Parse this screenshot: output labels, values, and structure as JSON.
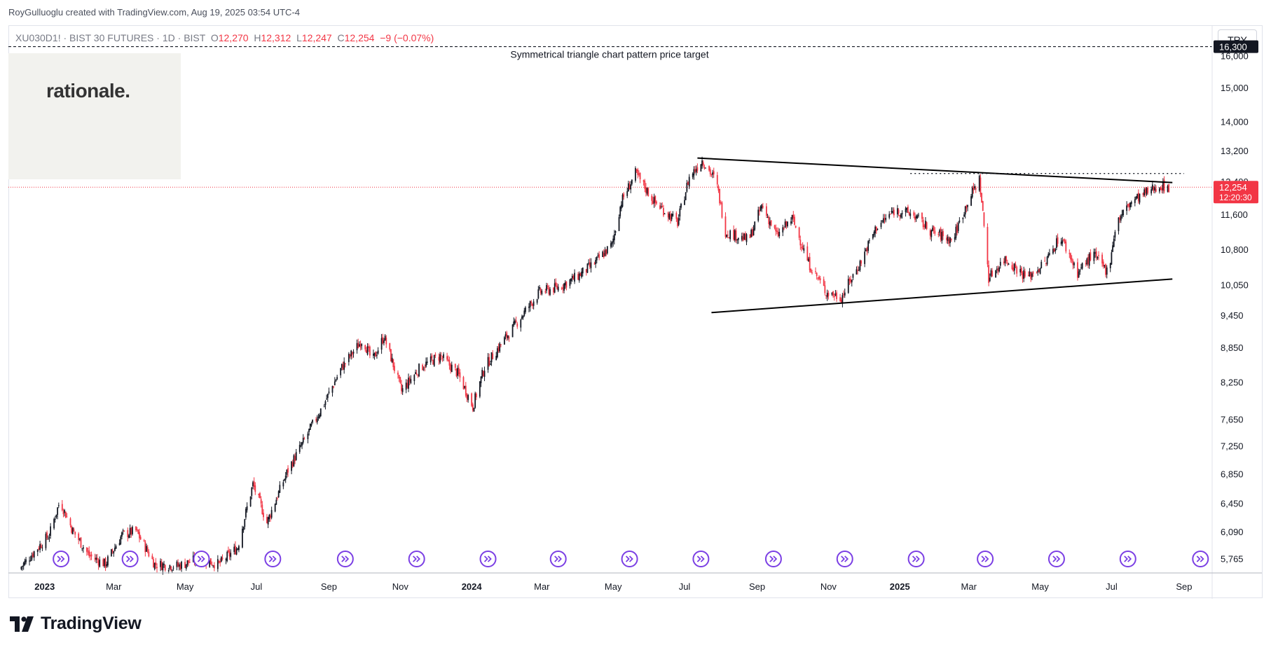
{
  "header": {
    "credit": "RoyGulluoglu created with TradingView.com, Aug 19, 2025 03:54 UTC-4"
  },
  "legend": {
    "symbol": "XU030D1!",
    "name": "BIST 30 FUTURES",
    "interval": "1D",
    "exchange": "BIST",
    "open_label": "O",
    "open": "12,270",
    "high_label": "H",
    "high": "12,312",
    "low_label": "L",
    "low": "12,247",
    "close_label": "C",
    "close": "12,254",
    "change": "−9 (−0.07%)"
  },
  "logo_text": "rationale.",
  "currency_button": "TRY",
  "brand": "TradingView",
  "colors": {
    "up": "#131722",
    "down": "#f23645",
    "last_price_bg": "#f23645",
    "target_bg": "#131722",
    "event_icon": "#7b3fe4",
    "trendline": "#000000"
  },
  "chart_data": {
    "type": "candlestick",
    "scale": "log",
    "ylim": [
      5600,
      17000
    ],
    "y_ticks": [
      "16,000",
      "15,000",
      "14,000",
      "13,200",
      "12,400",
      "11,600",
      "10,800",
      "10,050",
      "9,450",
      "8,850",
      "8,250",
      "7,650",
      "7,250",
      "6,850",
      "6,450",
      "6,090",
      "5,765"
    ],
    "x_ticks": [
      {
        "label": "2023",
        "date": "2023-01-01",
        "bold": true
      },
      {
        "label": "Mar",
        "date": "2023-03-01"
      },
      {
        "label": "May",
        "date": "2023-05-01"
      },
      {
        "label": "Jul",
        "date": "2023-07-01"
      },
      {
        "label": "Sep",
        "date": "2023-09-01"
      },
      {
        "label": "Nov",
        "date": "2023-11-01"
      },
      {
        "label": "2024",
        "date": "2024-01-01",
        "bold": true
      },
      {
        "label": "Mar",
        "date": "2024-03-01"
      },
      {
        "label": "May",
        "date": "2024-05-01"
      },
      {
        "label": "Jul",
        "date": "2024-07-01"
      },
      {
        "label": "Sep",
        "date": "2024-09-01"
      },
      {
        "label": "Nov",
        "date": "2024-11-01"
      },
      {
        "label": "2025",
        "date": "2025-01-01",
        "bold": true
      },
      {
        "label": "Mar",
        "date": "2025-03-01"
      },
      {
        "label": "May",
        "date": "2025-05-01"
      },
      {
        "label": "Jul",
        "date": "2025-07-01"
      },
      {
        "label": "Sep",
        "date": "2025-09-01"
      }
    ],
    "x_range": [
      "2022-12-01",
      "2025-09-25"
    ],
    "price_path": [
      [
        "2022-12-10",
        5640
      ],
      [
        "2023-01-05",
        6050
      ],
      [
        "2023-01-14",
        6480
      ],
      [
        "2023-01-25",
        6100
      ],
      [
        "2023-02-08",
        5800
      ],
      [
        "2023-02-22",
        5700
      ],
      [
        "2023-03-08",
        6050
      ],
      [
        "2023-03-20",
        6100
      ],
      [
        "2023-04-05",
        5700
      ],
      [
        "2023-04-25",
        5680
      ],
      [
        "2023-05-12",
        5760
      ],
      [
        "2023-05-30",
        5700
      ],
      [
        "2023-06-15",
        5900
      ],
      [
        "2023-06-28",
        6700
      ],
      [
        "2023-07-10",
        6200
      ],
      [
        "2023-07-28",
        6900
      ],
      [
        "2023-08-10",
        7300
      ],
      [
        "2023-08-28",
        7900
      ],
      [
        "2023-09-12",
        8500
      ],
      [
        "2023-09-30",
        9000
      ],
      [
        "2023-10-08",
        8600
      ],
      [
        "2023-10-18",
        9050
      ],
      [
        "2023-11-02",
        8100
      ],
      [
        "2023-11-18",
        8500
      ],
      [
        "2023-12-05",
        8700
      ],
      [
        "2023-12-20",
        8400
      ],
      [
        "2024-01-02",
        7850
      ],
      [
        "2024-01-12",
        8500
      ],
      [
        "2024-02-05",
        9200
      ],
      [
        "2024-02-28",
        9900
      ],
      [
        "2024-03-15",
        10000
      ],
      [
        "2024-03-30",
        10200
      ],
      [
        "2024-04-15",
        10500
      ],
      [
        "2024-04-30",
        10900
      ],
      [
        "2024-05-08",
        11900
      ],
      [
        "2024-05-20",
        12600
      ],
      [
        "2024-06-05",
        11900
      ],
      [
        "2024-06-25",
        11400
      ],
      [
        "2024-07-05",
        12500
      ],
      [
        "2024-07-16",
        12950
      ],
      [
        "2024-07-28",
        12400
      ],
      [
        "2024-08-05",
        11200
      ],
      [
        "2024-08-25",
        11000
      ],
      [
        "2024-09-05",
        11800
      ],
      [
        "2024-09-18",
        11100
      ],
      [
        "2024-10-01",
        11500
      ],
      [
        "2024-10-15",
        10500
      ],
      [
        "2024-10-30",
        9900
      ],
      [
        "2024-11-12",
        9800
      ],
      [
        "2024-11-28",
        10500
      ],
      [
        "2024-12-12",
        11300
      ],
      [
        "2024-12-28",
        11700
      ],
      [
        "2025-01-12",
        11600
      ],
      [
        "2025-01-28",
        11200
      ],
      [
        "2025-02-15",
        11000
      ],
      [
        "2025-02-28",
        11900
      ],
      [
        "2025-03-10",
        12450
      ],
      [
        "2025-03-18",
        10200
      ],
      [
        "2025-04-01",
        10600
      ],
      [
        "2025-04-20",
        10200
      ],
      [
        "2025-05-05",
        10500
      ],
      [
        "2025-05-18",
        11100
      ],
      [
        "2025-06-02",
        10300
      ],
      [
        "2025-06-15",
        10700
      ],
      [
        "2025-06-28",
        10300
      ],
      [
        "2025-07-05",
        11400
      ],
      [
        "2025-07-18",
        11900
      ],
      [
        "2025-07-30",
        12100
      ],
      [
        "2025-08-10",
        12300
      ],
      [
        "2025-08-19",
        12254
      ]
    ],
    "annotations": [
      {
        "kind": "horizontal-dashed",
        "price": 16300,
        "from": "2022-12-01",
        "to": "2025-09-25",
        "label": "Symmetrical triangle chart pattern price target"
      },
      {
        "kind": "trendline",
        "from": [
          "2024-07-12",
          13000
        ],
        "to": [
          "2025-08-22",
          12370
        ]
      },
      {
        "kind": "trendline",
        "from": [
          "2024-07-24",
          9500
        ],
        "to": [
          "2025-08-22",
          10170
        ]
      },
      {
        "kind": "horizontal-dotted",
        "price": 12600,
        "from": "2025-01-10",
        "to": "2025-09-01"
      },
      {
        "kind": "horizontal-dotted-red",
        "price": 12254,
        "from": "2022-12-01",
        "to": "2025-09-25"
      }
    ],
    "price_badges": [
      {
        "price": 16300,
        "text": "16,300",
        "style": "target"
      },
      {
        "price": 12254,
        "text": "12,254",
        "sub": "12:20:30",
        "style": "last"
      }
    ],
    "event_markers": [
      "2023-01-15",
      "2023-03-15",
      "2023-05-15",
      "2023-07-15",
      "2023-09-15",
      "2023-11-15",
      "2024-01-15",
      "2024-03-15",
      "2024-05-15",
      "2024-07-15",
      "2024-09-15",
      "2024-11-15",
      "2025-01-15",
      "2025-03-15",
      "2025-05-15",
      "2025-07-15",
      "2025-09-15"
    ]
  }
}
